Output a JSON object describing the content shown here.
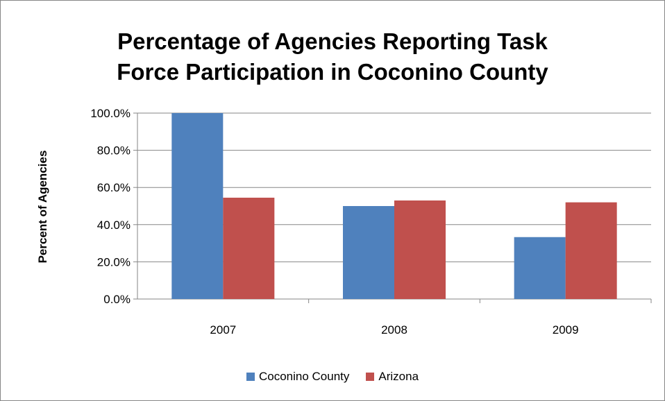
{
  "chart_data": {
    "type": "bar",
    "title": "Percentage of Agencies Reporting Task\nForce Participation in Coconino County",
    "xlabel": "",
    "ylabel": "Percent of Agencies",
    "categories": [
      "2007",
      "2008",
      "2009"
    ],
    "series": [
      {
        "name": "Coconino County",
        "values": [
          100.0,
          50.0,
          33.3
        ],
        "color": "#4F81BD"
      },
      {
        "name": "Arizona",
        "values": [
          54.5,
          53.0,
          52.0
        ],
        "color": "#C0504D"
      }
    ],
    "ylim": [
      0,
      100
    ],
    "yticks": [
      "0.0%",
      "20.0%",
      "40.0%",
      "60.0%",
      "80.0%",
      "100.0%"
    ],
    "grid": true,
    "legend_position": "bottom"
  }
}
